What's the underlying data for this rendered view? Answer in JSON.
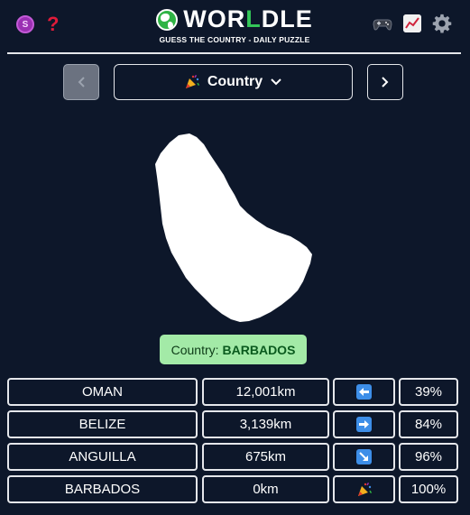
{
  "header": {
    "title_pre": "WOR",
    "title_accent": "L",
    "title_post": "DLE",
    "subtitle": "GUESS THE COUNTRY - DAILY PUZZLE",
    "coin_glyph": "S",
    "help_glyph": "?"
  },
  "nav": {
    "select_label": "Country",
    "select_icon": "party-popper-icon"
  },
  "answer": {
    "prefix": "Country:",
    "value": "BARBADOS"
  },
  "guesses": [
    {
      "name": "OMAN",
      "distance": "12,001km",
      "direction": "left",
      "percent": "39%"
    },
    {
      "name": "BELIZE",
      "distance": "3,139km",
      "direction": "right",
      "percent": "84%"
    },
    {
      "name": "ANGUILLA",
      "distance": "675km",
      "direction": "down-right",
      "percent": "96%"
    },
    {
      "name": "BARBADOS",
      "distance": "0km",
      "direction": "found",
      "percent": "100%"
    }
  ],
  "colors": {
    "background": "#0d172a",
    "answer_bg": "#a3eaa7",
    "arrow_bg": "#3d8ee8",
    "accent_green": "#34c759"
  }
}
